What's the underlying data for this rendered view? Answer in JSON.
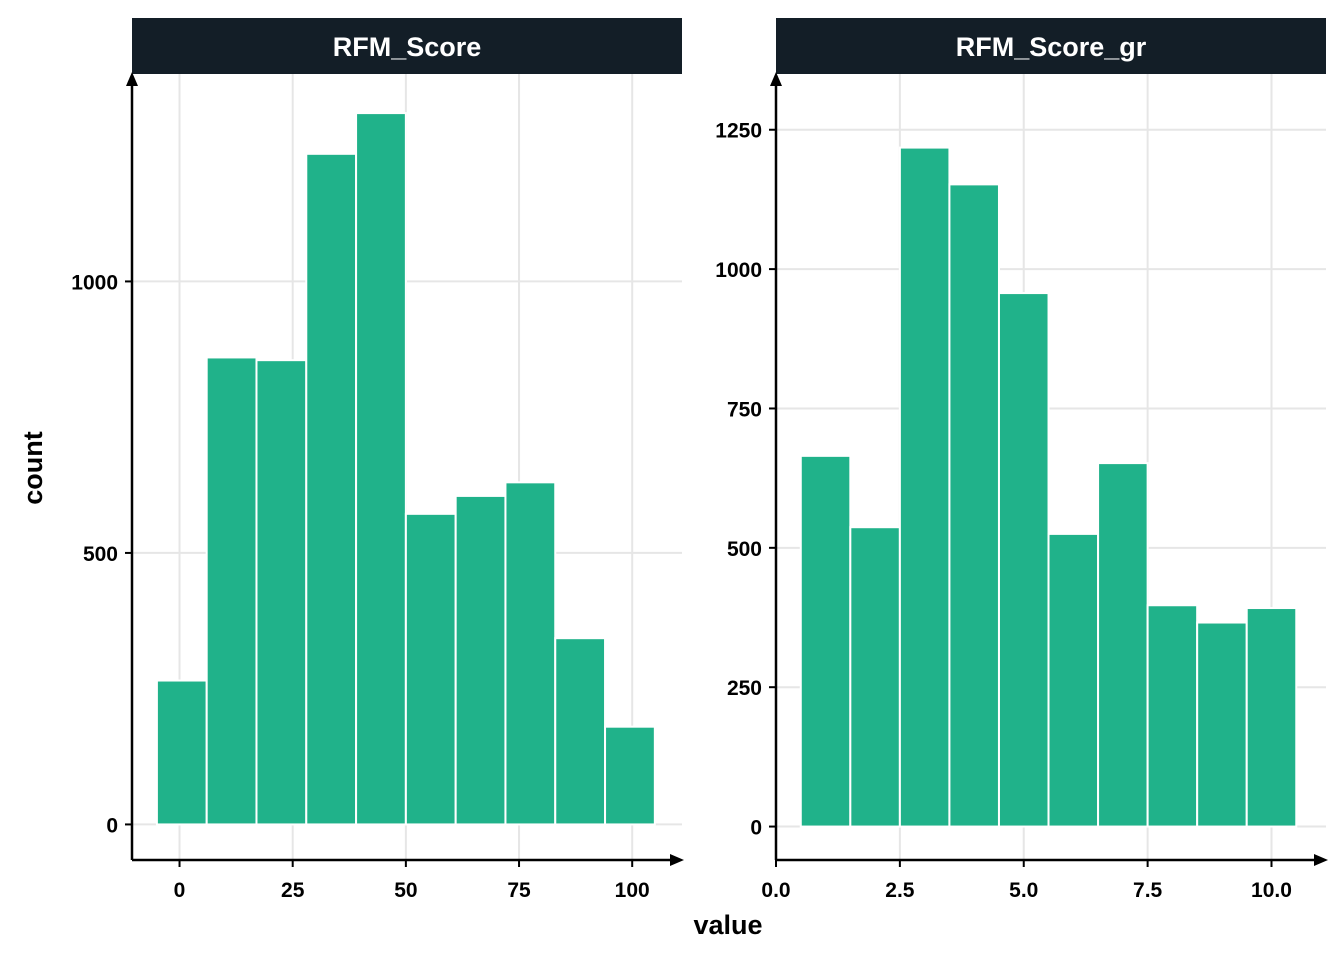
{
  "chart_data": {
    "type": "bar",
    "xlabel": "value",
    "ylabel": "count",
    "bar_color": "#20B28A",
    "strip_color": "#131E27",
    "grid_color": "#E6E6E6",
    "grid": true,
    "panels": [
      {
        "title": "RFM_Score",
        "bins": [
          {
            "x0": -5,
            "x1": 6,
            "value": 265
          },
          {
            "x0": 6,
            "x1": 17,
            "value": 860
          },
          {
            "x0": 17,
            "x1": 28,
            "value": 855
          },
          {
            "x0": 28,
            "x1": 39,
            "value": 1235
          },
          {
            "x0": 39,
            "x1": 50,
            "value": 1310
          },
          {
            "x0": 50,
            "x1": 61,
            "value": 572
          },
          {
            "x0": 61,
            "x1": 72,
            "value": 605
          },
          {
            "x0": 72,
            "x1": 83,
            "value": 630
          },
          {
            "x0": 83,
            "x1": 94,
            "value": 343
          },
          {
            "x0": 94,
            "x1": 105,
            "value": 180
          }
        ],
        "xlim": [
          -10.5,
          111
        ],
        "ylim": [
          -65.5,
          1382
        ],
        "xticks": [
          0,
          25,
          50,
          75,
          100
        ],
        "xtick_labels": [
          "0",
          "25",
          "50",
          "75",
          "100"
        ],
        "yticks": [
          0,
          500,
          1000
        ],
        "ytick_labels": [
          "0",
          "500",
          "1000"
        ]
      },
      {
        "title": "RFM_Score_gr",
        "bins": [
          {
            "x0": 0.5,
            "x1": 1.5,
            "value": 665
          },
          {
            "x0": 1.5,
            "x1": 2.5,
            "value": 537
          },
          {
            "x0": 2.5,
            "x1": 3.5,
            "value": 1218
          },
          {
            "x0": 3.5,
            "x1": 4.5,
            "value": 1152
          },
          {
            "x0": 4.5,
            "x1": 5.5,
            "value": 957
          },
          {
            "x0": 5.5,
            "x1": 6.5,
            "value": 525
          },
          {
            "x0": 6.5,
            "x1": 7.5,
            "value": 652
          },
          {
            "x0": 7.5,
            "x1": 8.5,
            "value": 397
          },
          {
            "x0": 8.5,
            "x1": 9.5,
            "value": 366
          },
          {
            "x0": 9.5,
            "x1": 10.5,
            "value": 392
          }
        ],
        "xlim": [
          0,
          11.1
        ],
        "ylim": [
          -60,
          1350
        ],
        "xticks": [
          0,
          2.5,
          5,
          7.5,
          10
        ],
        "xtick_labels": [
          "0.0",
          "2.5",
          "5.0",
          "7.5",
          "10.0"
        ],
        "yticks": [
          0,
          250,
          500,
          750,
          1000,
          1250
        ],
        "ytick_labels": [
          "0",
          "250",
          "500",
          "750",
          "1000",
          "1250"
        ]
      }
    ]
  }
}
